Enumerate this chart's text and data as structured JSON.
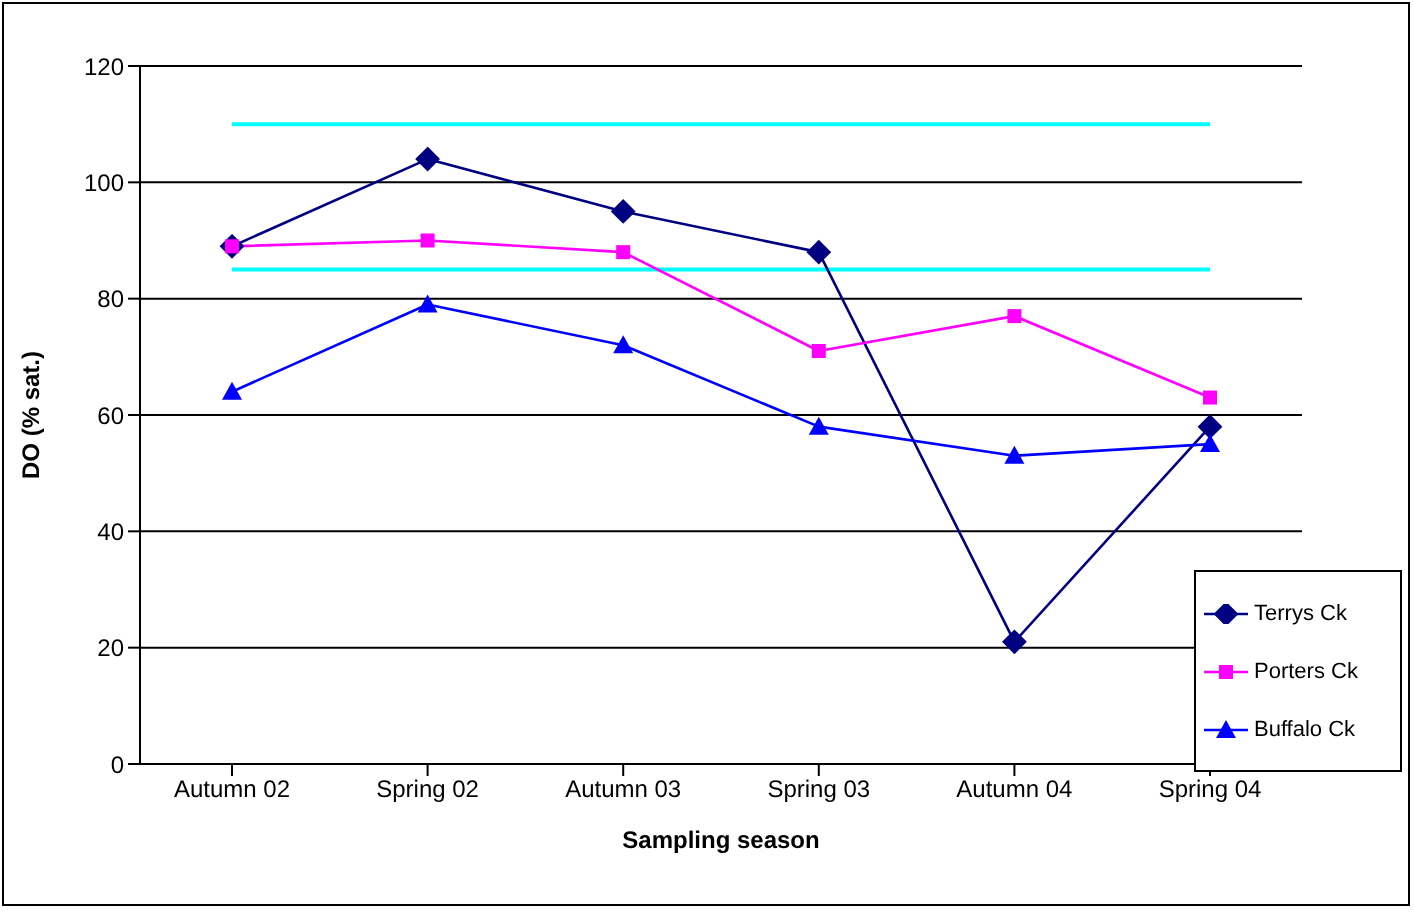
{
  "chart_data": {
    "type": "line",
    "xlabel": "Sampling season",
    "ylabel": "DO (% sat.)",
    "categories": [
      "Autumn 02",
      "Spring 02",
      "Autumn 03",
      "Spring 03",
      "Autumn 04",
      "Spring 04"
    ],
    "series": [
      {
        "name": "Terrys Ck",
        "color": "#000080",
        "marker": "diamond",
        "values": [
          89,
          104,
          95,
          88,
          21,
          58
        ]
      },
      {
        "name": "Porters Ck",
        "color": "#ff00ff",
        "marker": "square",
        "values": [
          89,
          90,
          88,
          71,
          77,
          63
        ]
      },
      {
        "name": "Buffalo Ck",
        "color": "#0000ff",
        "marker": "triangle",
        "values": [
          64,
          79,
          72,
          58,
          53,
          55
        ]
      }
    ],
    "ref_lines": [
      {
        "axis": "y",
        "value": 110,
        "color": "#00ffff"
      },
      {
        "axis": "y",
        "value": 85,
        "color": "#00ffff"
      }
    ],
    "ylim": [
      0,
      120
    ],
    "yticks": [
      0,
      20,
      40,
      60,
      80,
      100,
      120
    ],
    "grid": "y",
    "legend": "bottom right"
  }
}
